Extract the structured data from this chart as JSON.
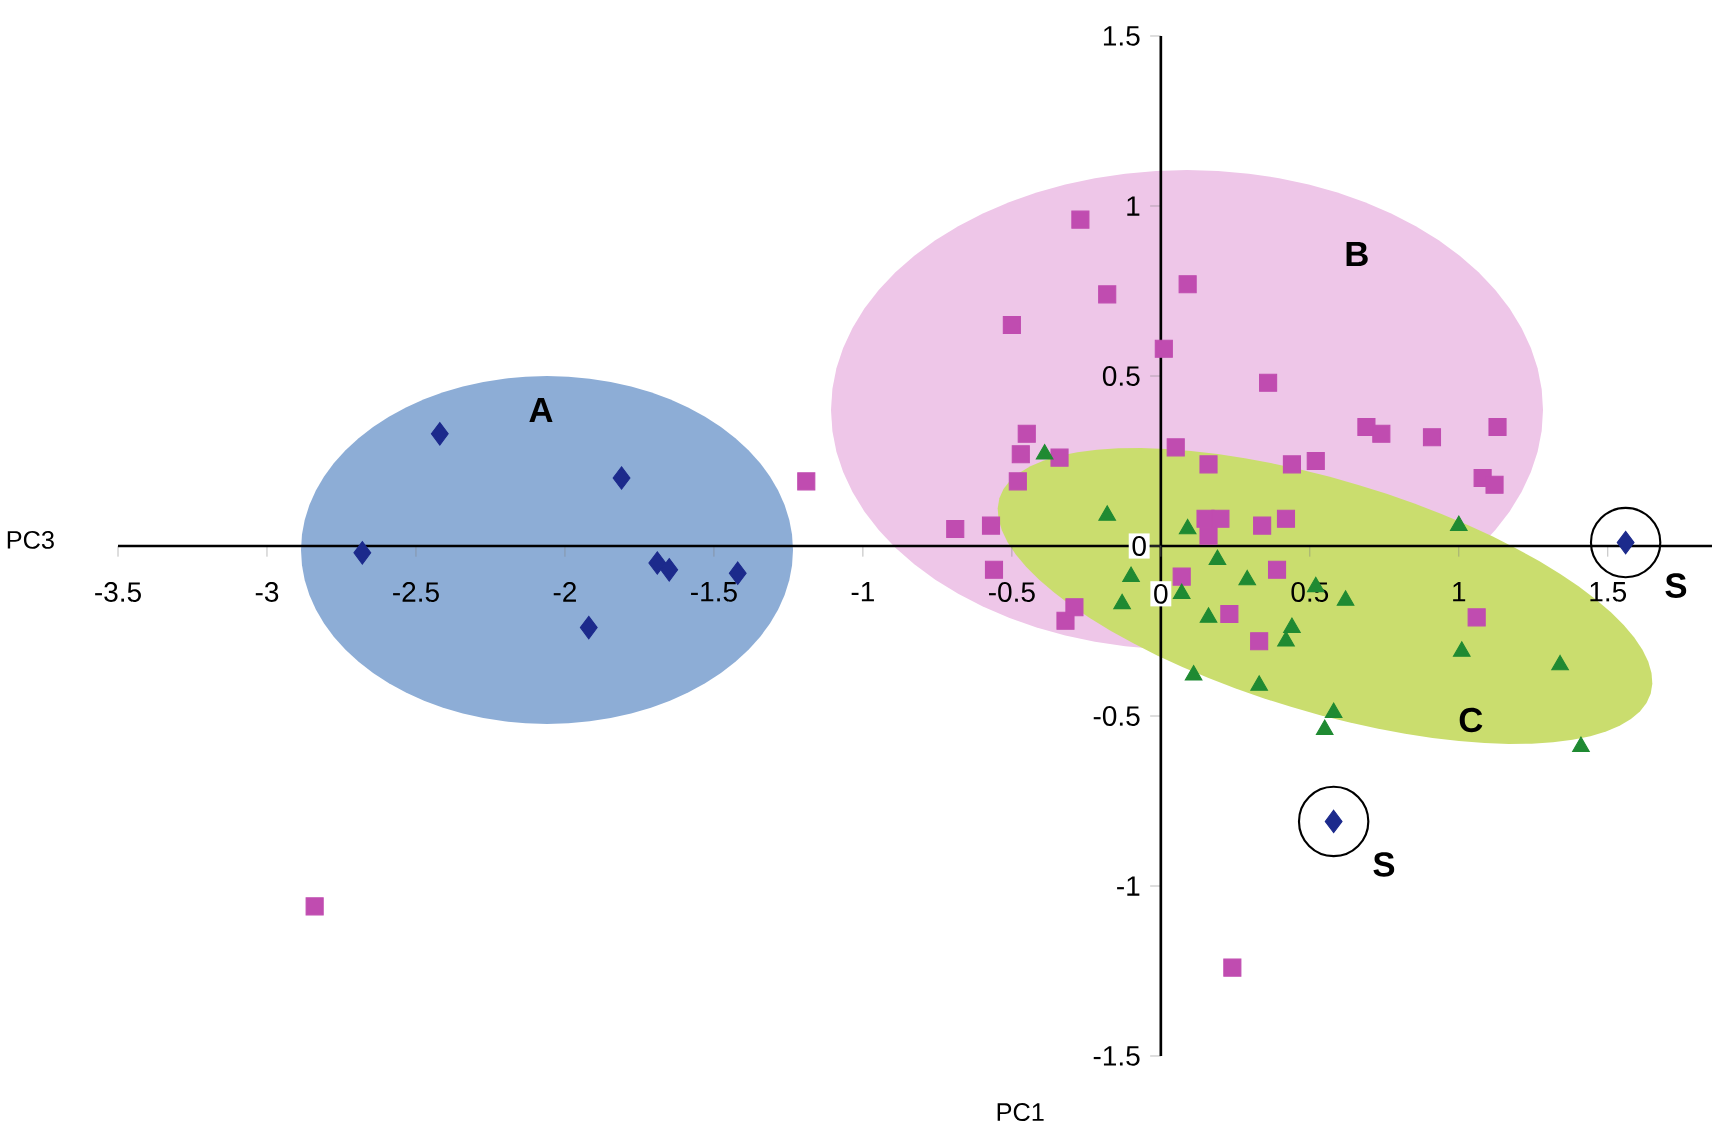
{
  "chart_data": {
    "type": "scatter",
    "xlabel": "PC1",
    "ylabel": "PC3",
    "xlim": [
      -3.5,
      1.85
    ],
    "ylim": [
      -1.5,
      1.5
    ],
    "xticks": [
      -3.5,
      -3,
      -2.5,
      -2,
      -1.5,
      -1,
      -0.5,
      0,
      0.5,
      1,
      1.5
    ],
    "yticks": [
      -1.5,
      -1,
      -0.5,
      0,
      0.5,
      1,
      1.5
    ],
    "series": [
      {
        "color": "#1c2a8c",
        "marker": "diamond",
        "x": [
          -2.68,
          -2.42,
          -1.81,
          -1.69,
          -1.65,
          -1.42,
          -1.92,
          1.56,
          0.58
        ],
        "values": [
          -0.02,
          0.33,
          0.2,
          -0.05,
          -0.07,
          -0.08,
          -0.24,
          0.01,
          -0.81
        ]
      },
      {
        "color": "#c04cb0",
        "marker": "square",
        "x": [
          -1.19,
          -2.84,
          0.24,
          -0.27,
          -0.18,
          0.09,
          -0.5,
          0.01,
          0.36,
          -0.45,
          -0.47,
          -0.34,
          -0.48,
          0.05,
          0.16,
          0.44,
          0.52,
          0.69,
          0.74,
          0.91,
          1.13,
          1.08,
          1.12,
          -0.69,
          -0.57,
          -0.56,
          -0.32,
          -0.29,
          0.15,
          0.2,
          0.16,
          0.34,
          0.42,
          0.07,
          0.39,
          0.23,
          0.33,
          1.06
        ],
        "values": [
          0.19,
          -1.06,
          -1.24,
          0.96,
          0.74,
          0.77,
          0.65,
          0.58,
          0.48,
          0.33,
          0.27,
          0.26,
          0.19,
          0.29,
          0.24,
          0.24,
          0.25,
          0.35,
          0.33,
          0.32,
          0.35,
          0.2,
          0.18,
          0.05,
          0.06,
          -0.07,
          -0.22,
          -0.18,
          0.08,
          0.08,
          0.03,
          0.06,
          0.08,
          -0.09,
          -0.07,
          -0.2,
          -0.28,
          -0.21
        ]
      },
      {
        "color": "#1f8a32",
        "marker": "triangle",
        "x": [
          -0.39,
          -0.18,
          0.09,
          1.0,
          0.19,
          -0.1,
          -0.13,
          0.07,
          0.29,
          0.16,
          0.52,
          0.62,
          0.44,
          0.42,
          0.11,
          0.33,
          0.58,
          0.55,
          1.01,
          1.34,
          1.41
        ],
        "values": [
          0.27,
          0.09,
          0.05,
          0.06,
          -0.04,
          -0.09,
          -0.17,
          -0.14,
          -0.1,
          -0.21,
          -0.12,
          -0.16,
          -0.24,
          -0.28,
          -0.38,
          -0.41,
          -0.49,
          -0.54,
          -0.31,
          -0.35,
          -0.59
        ]
      }
    ],
    "annotations": [
      "A",
      "B",
      "C",
      {
        "text": "S",
        "x": 1.56,
        "y": 0.01
      },
      {
        "text": "S",
        "x": 0.58,
        "y": -0.81
      }
    ]
  }
}
